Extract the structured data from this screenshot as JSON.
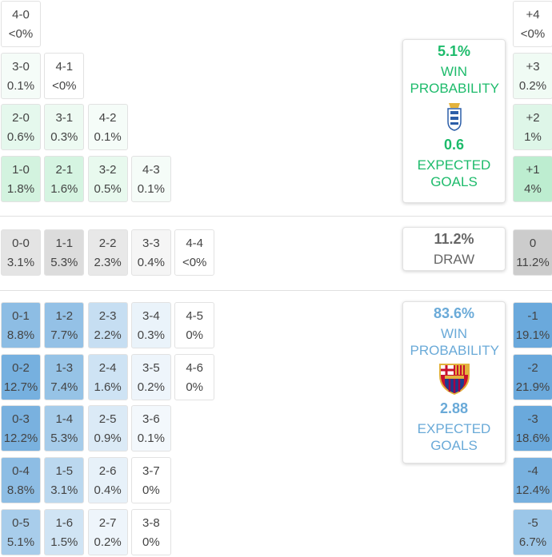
{
  "home_wins": [
    [
      {
        "score": "4-0",
        "prob": "<0%"
      }
    ],
    [
      {
        "score": "3-0",
        "prob": "0.1%"
      },
      {
        "score": "4-1",
        "prob": "<0%"
      }
    ],
    [
      {
        "score": "2-0",
        "prob": "0.6%"
      },
      {
        "score": "3-1",
        "prob": "0.3%"
      },
      {
        "score": "4-2",
        "prob": "0.1%"
      }
    ],
    [
      {
        "score": "1-0",
        "prob": "1.8%"
      },
      {
        "score": "2-1",
        "prob": "1.6%"
      },
      {
        "score": "3-2",
        "prob": "0.5%"
      },
      {
        "score": "4-3",
        "prob": "0.1%"
      }
    ]
  ],
  "draws": [
    [
      {
        "score": "0-0",
        "prob": "3.1%"
      },
      {
        "score": "1-1",
        "prob": "5.3%"
      },
      {
        "score": "2-2",
        "prob": "2.3%"
      },
      {
        "score": "3-3",
        "prob": "0.4%"
      },
      {
        "score": "4-4",
        "prob": "<0%"
      }
    ]
  ],
  "away_wins": [
    [
      {
        "score": "0-1",
        "prob": "8.8%"
      },
      {
        "score": "1-2",
        "prob": "7.7%"
      },
      {
        "score": "2-3",
        "prob": "2.2%"
      },
      {
        "score": "3-4",
        "prob": "0.3%"
      },
      {
        "score": "4-5",
        "prob": "0%"
      }
    ],
    [
      {
        "score": "0-2",
        "prob": "12.7%"
      },
      {
        "score": "1-3",
        "prob": "7.4%"
      },
      {
        "score": "2-4",
        "prob": "1.6%"
      },
      {
        "score": "3-5",
        "prob": "0.2%"
      },
      {
        "score": "4-6",
        "prob": "0%"
      }
    ],
    [
      {
        "score": "0-3",
        "prob": "12.2%"
      },
      {
        "score": "1-4",
        "prob": "5.3%"
      },
      {
        "score": "2-5",
        "prob": "0.9%"
      },
      {
        "score": "3-6",
        "prob": "0.1%"
      }
    ],
    [
      {
        "score": "0-4",
        "prob": "8.8%"
      },
      {
        "score": "1-5",
        "prob": "3.1%"
      },
      {
        "score": "2-6",
        "prob": "0.4%"
      },
      {
        "score": "3-7",
        "prob": "0%"
      }
    ],
    [
      {
        "score": "0-5",
        "prob": "5.1%"
      },
      {
        "score": "1-6",
        "prob": "1.5%"
      },
      {
        "score": "2-7",
        "prob": "0.2%"
      },
      {
        "score": "3-8",
        "prob": "0%"
      }
    ]
  ],
  "margins": {
    "home_wins": [
      {
        "margin": "+4",
        "prob": "<0%"
      },
      {
        "margin": "+3",
        "prob": "0.2%"
      },
      {
        "margin": "+2",
        "prob": "1%"
      },
      {
        "margin": "+1",
        "prob": "4%"
      }
    ],
    "draws": [
      {
        "margin": "0",
        "prob": "11.2%"
      }
    ],
    "away_wins": [
      {
        "margin": "-1",
        "prob": "19.1%"
      },
      {
        "margin": "-2",
        "prob": "21.9%"
      },
      {
        "margin": "-3",
        "prob": "18.6%"
      },
      {
        "margin": "-4",
        "prob": "12.4%"
      },
      {
        "margin": "-5",
        "prob": "6.7%"
      }
    ]
  },
  "cards": {
    "home": {
      "win_prob": "5.1%",
      "win_label": "WIN PROBABILITY",
      "xg": "0.6",
      "xg_label": "EXPECTED GOALS"
    },
    "draw": {
      "prob": "11.2%",
      "label": "DRAW"
    },
    "away": {
      "win_prob": "83.6%",
      "win_label": "WIN PROBABILITY",
      "xg": "2.88",
      "xg_label": "EXPECTED GOALS"
    }
  },
  "colors": {
    "home_wins": "#7fdca4",
    "draws": "#c4c4c4",
    "away_wins": "#6aa9dc",
    "home_text": "#1dbb6b",
    "draw_text": "#666666",
    "away_text": "#6aaad8"
  }
}
